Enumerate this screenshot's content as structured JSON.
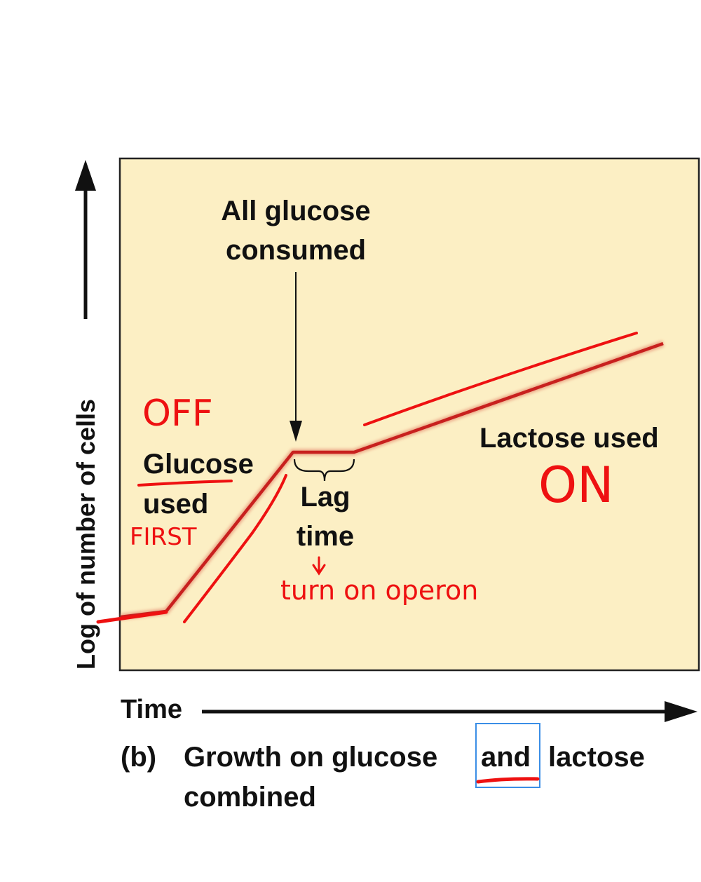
{
  "chart_data": {
    "type": "line",
    "title": "",
    "xlabel": "Time",
    "ylabel": "Log of number of cells",
    "phases": [
      "Glucose used",
      "Lag time",
      "Lactose used"
    ],
    "colors": {
      "curve": "#c8201e",
      "plot_background": "#fcefc4",
      "annotation": "#ee1111",
      "highlight_box": "#3a8ee6"
    }
  },
  "labels": {
    "all_glucose_line1": "All glucose",
    "all_glucose_line2": "consumed",
    "glucose_line1": "Glucose",
    "glucose_line2": "used",
    "lag_line1": "Lag",
    "lag_line2": "time",
    "lactose_used": "Lactose used",
    "y_axis": "Log of number of cells",
    "x_axis": "Time"
  },
  "caption": {
    "panel": "(b)",
    "line1_before": "Growth on glucose",
    "highlight": "and",
    "line1_after": "lactose",
    "line2": "combined"
  },
  "handwritten": {
    "off": "OFF",
    "on": "ON",
    "first": "FIRST",
    "turn_on_operon": "turn on operon"
  }
}
